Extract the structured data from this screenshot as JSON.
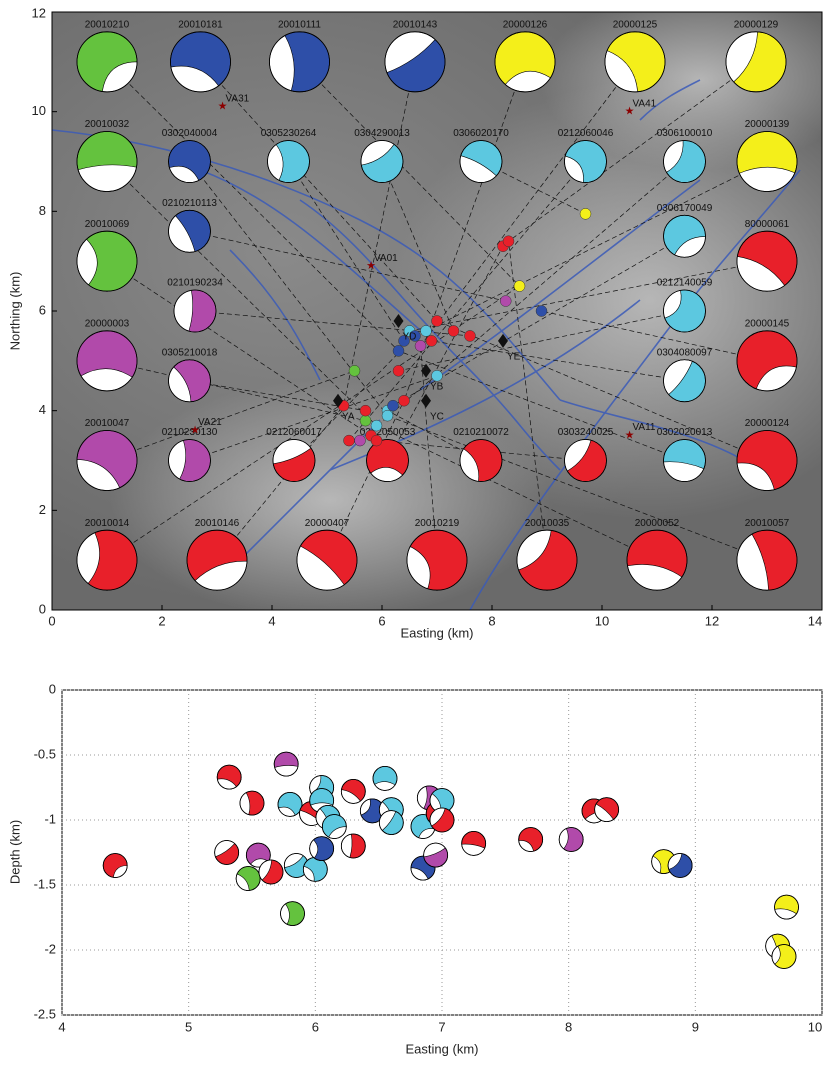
{
  "chart_data": [
    {
      "type": "map",
      "xlabel": "Easting (km)",
      "ylabel": "Northing (km)",
      "xlim": [
        0,
        14
      ],
      "ylim": [
        0,
        12
      ],
      "xticks": [
        0,
        2,
        4,
        6,
        8,
        10,
        12,
        14
      ],
      "yticks": [
        0,
        2,
        4,
        6,
        8,
        10,
        12
      ],
      "beachballs": {
        "labels": [
          "20010210",
          "20010181",
          "20010111",
          "20010143",
          "20000126",
          "20000125",
          "20000129",
          "20010032",
          "0302040004",
          "0305230264",
          "0304290013",
          "0306020170",
          "0212060046",
          "0306100010",
          "20000139",
          "0210210113",
          "20010069",
          "0306170049",
          "80000061",
          "0210190234",
          "0212140059",
          "20000003",
          "0305210018",
          "0304080097",
          "20000145",
          "20010047",
          "0210230130",
          "0212060017",
          "0212050053",
          "0210210072",
          "0303240025",
          "0302020013",
          "20000124",
          "20010014",
          "20010146",
          "20000407",
          "20010219",
          "20010035",
          "20000052",
          "20010057"
        ],
        "x": [
          1.0,
          2.7,
          4.5,
          6.6,
          8.6,
          10.6,
          12.8,
          1.0,
          2.5,
          4.3,
          6.0,
          7.8,
          9.7,
          11.5,
          13.0,
          2.5,
          1.0,
          11.5,
          13.0,
          2.6,
          11.5,
          1.0,
          2.5,
          11.5,
          13.0,
          1.0,
          2.5,
          4.4,
          6.1,
          7.8,
          9.7,
          11.5,
          13.0,
          1.0,
          3.0,
          5.0,
          7.0,
          9.0,
          11.0,
          13.0
        ],
        "y": [
          11.0,
          11.0,
          11.0,
          11.0,
          11.0,
          11.0,
          11.0,
          9.0,
          9.0,
          9.0,
          9.0,
          9.0,
          9.0,
          9.0,
          9.0,
          7.6,
          7.0,
          7.5,
          7.0,
          6.0,
          6.0,
          5.0,
          4.6,
          4.6,
          5.0,
          3.0,
          3.0,
          3.0,
          3.0,
          3.0,
          3.0,
          3.0,
          3.0,
          1.0,
          1.0,
          1.0,
          1.0,
          1.0,
          1.0,
          1.0
        ],
        "colors": [
          "#64c23e",
          "#2e4fa8",
          "#2e4fa8",
          "#2e4fa8",
          "#f4ef1a",
          "#f4ef1a",
          "#f4ef1a",
          "#64c23e",
          "#2e4fa8",
          "#5cc8e0",
          "#5cc8e0",
          "#5cc8e0",
          "#5cc8e0",
          "#5cc8e0",
          "#f4ef1a",
          "#2e4fa8",
          "#64c23e",
          "#5cc8e0",
          "#e8202a",
          "#b14aaa",
          "#5cc8e0",
          "#b14aaa",
          "#b14aaa",
          "#5cc8e0",
          "#e8202a",
          "#b14aaa",
          "#b14aaa",
          "#e8202a",
          "#e8202a",
          "#e8202a",
          "#e8202a",
          "#5cc8e0",
          "#e8202a",
          "#e8202a",
          "#e8202a",
          "#e8202a",
          "#e8202a",
          "#e8202a",
          "#e8202a",
          "#e8202a"
        ]
      },
      "epicenters": {
        "x": [
          6.3,
          6.4,
          6.5,
          6.6,
          6.7,
          6.8,
          6.9,
          7.0,
          7.3,
          7.6,
          8.2,
          8.3,
          8.25,
          8.9,
          8.5,
          9.7,
          6.3,
          6.1,
          5.9,
          5.8,
          5.5,
          5.3,
          5.4,
          5.7,
          5.9,
          6.1,
          6.2,
          7.0,
          6.4,
          5.6,
          5.7
        ],
        "y": [
          5.2,
          5.4,
          5.6,
          5.5,
          5.3,
          5.6,
          5.4,
          5.8,
          5.6,
          5.5,
          7.3,
          7.4,
          6.2,
          6.0,
          6.5,
          7.95,
          4.8,
          4.0,
          3.7,
          3.5,
          4.8,
          4.1,
          3.4,
          3.8,
          3.4,
          3.9,
          4.1,
          4.7,
          4.2,
          3.4,
          4.0
        ],
        "colors": [
          "#2e4fa8",
          "#2e4fa8",
          "#5cc8e0",
          "#2e4fa8",
          "#b14aaa",
          "#5cc8e0",
          "#e8202a",
          "#e8202a",
          "#e8202a",
          "#e8202a",
          "#e8202a",
          "#e8202a",
          "#b14aaa",
          "#2e4fa8",
          "#f4ef1a",
          "#f4ef1a",
          "#e8202a",
          "#5cc8e0",
          "#5cc8e0",
          "#e8202a",
          "#64c23e",
          "#e8202a",
          "#e8202a",
          "#64c23e",
          "#e8202a",
          "#5cc8e0",
          "#2e4fa8",
          "#5cc8e0",
          "#e8202a",
          "#b14aaa",
          "#e8202a"
        ]
      },
      "stations": {
        "labels": [
          "YA",
          "YB",
          "YC",
          "YD",
          "YE"
        ],
        "x": [
          5.2,
          6.8,
          6.8,
          6.3,
          8.2
        ],
        "y": [
          4.2,
          4.8,
          4.2,
          5.8,
          5.4
        ]
      },
      "stars": {
        "labels": [
          "VA31",
          "VA41",
          "VA01",
          "VA21",
          "VA11"
        ],
        "x": [
          3.1,
          10.5,
          5.8,
          2.6,
          10.5
        ],
        "y": [
          10.1,
          10.0,
          6.9,
          3.6,
          3.5
        ]
      }
    },
    {
      "type": "scatter",
      "xlabel": "Easting (km)",
      "ylabel": "Depth (km)",
      "xlim": [
        4,
        10
      ],
      "ylim": [
        -2.5,
        0
      ],
      "xticks": [
        4,
        5,
        6,
        7,
        8,
        9,
        10
      ],
      "yticks": [
        0,
        -0.5,
        -1,
        -1.5,
        -2,
        -2.5
      ],
      "grid": true,
      "x": [
        4.42,
        5.32,
        5.5,
        5.3,
        5.55,
        5.47,
        5.65,
        5.77,
        5.8,
        5.82,
        5.85,
        5.97,
        6.0,
        6.05,
        6.05,
        6.1,
        6.05,
        6.15,
        6.3,
        6.3,
        6.45,
        6.55,
        6.6,
        6.6,
        6.85,
        6.85,
        6.9,
        6.95,
        6.97,
        7.0,
        7.0,
        7.25,
        7.7,
        8.02,
        8.2,
        8.3,
        8.75,
        8.88,
        9.72,
        9.65,
        9.7
      ],
      "y": [
        -1.35,
        -0.67,
        -0.87,
        -1.25,
        -1.27,
        -1.45,
        -1.4,
        -0.57,
        -0.88,
        -1.72,
        -1.35,
        -0.95,
        -1.38,
        -0.75,
        -0.85,
        -0.98,
        -1.22,
        -1.05,
        -0.78,
        -1.2,
        -0.93,
        -0.68,
        -0.92,
        -1.02,
        -1.05,
        -1.37,
        -0.83,
        -1.27,
        -0.95,
        -0.85,
        -1.0,
        -1.18,
        -1.15,
        -1.15,
        -0.93,
        -0.92,
        -1.32,
        -1.35,
        -1.67,
        -1.97,
        -2.05
      ],
      "colors": [
        "#e8202a",
        "#e8202a",
        "#e8202a",
        "#e8202a",
        "#b14aaa",
        "#64c23e",
        "#e8202a",
        "#b14aaa",
        "#5cc8e0",
        "#64c23e",
        "#5cc8e0",
        "#e8202a",
        "#5cc8e0",
        "#5cc8e0",
        "#5cc8e0",
        "#5cc8e0",
        "#2e4fa8",
        "#5cc8e0",
        "#e8202a",
        "#e8202a",
        "#2e4fa8",
        "#5cc8e0",
        "#5cc8e0",
        "#5cc8e0",
        "#5cc8e0",
        "#2e4fa8",
        "#b14aaa",
        "#b14aaa",
        "#e8202a",
        "#5cc8e0",
        "#e8202a",
        "#e8202a",
        "#e8202a",
        "#b14aaa",
        "#e8202a",
        "#e8202a",
        "#f4ef1a",
        "#2e4fa8",
        "#f4ef1a",
        "#f4ef1a",
        "#f4ef1a"
      ]
    }
  ]
}
